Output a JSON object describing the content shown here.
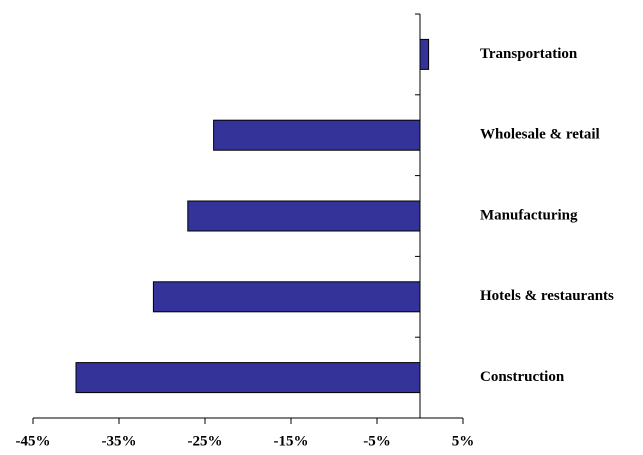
{
  "chart_data": {
    "type": "bar",
    "orientation": "horizontal",
    "categories": [
      "Transportation",
      "Wholesale & retail",
      "Manufacturing",
      "Hotels & restaurants",
      "Construction"
    ],
    "values": [
      1,
      -24,
      -27,
      -31,
      -40
    ],
    "color": "#333399",
    "xlim": [
      -45,
      5
    ],
    "xticks": [
      {
        "value": -45,
        "label": "-45%"
      },
      {
        "value": -35,
        "label": "-35%"
      },
      {
        "value": -25,
        "label": "-25%"
      },
      {
        "value": -15,
        "label": "-15%"
      },
      {
        "value": -5,
        "label": "-5%"
      },
      {
        "value": 5,
        "label": "5%"
      }
    ],
    "grid": false
  }
}
